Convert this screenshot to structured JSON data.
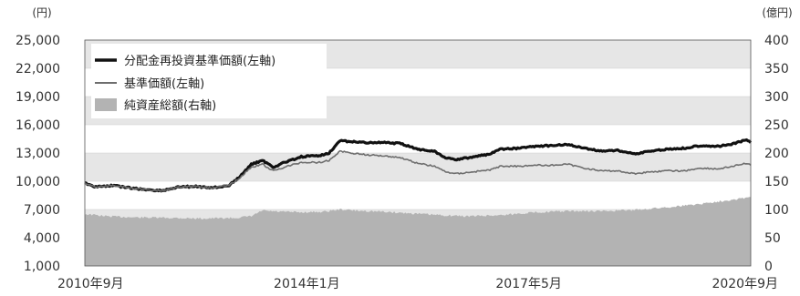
{
  "chart_data": {
    "type": "line",
    "title": "",
    "left_axis": {
      "unit": "(円)",
      "range": [
        1000,
        25000
      ],
      "ticks": [
        "25,000",
        "22,000",
        "19,000",
        "16,000",
        "13,000",
        "10,000",
        "7,000",
        "4,000",
        "1,000"
      ]
    },
    "right_axis": {
      "unit": "(億円)",
      "range": [
        0,
        400
      ],
      "ticks": [
        "400",
        "350",
        "300",
        "250",
        "200",
        "150",
        "100",
        "50",
        "0"
      ]
    },
    "x_axis": {
      "range": [
        "2010-09",
        "2020-09"
      ],
      "ticks": [
        {
          "date": "2010-09",
          "label": "2010年9月"
        },
        {
          "date": "2014-01",
          "label": "2014年1月"
        },
        {
          "date": "2017-05",
          "label": "2017年5月"
        },
        {
          "date": "2020-09",
          "label": "2020年9月"
        }
      ]
    },
    "grid": "horizontal bands",
    "legend": {
      "placement": "top-left"
    },
    "series": [
      {
        "name": "分配金再投資基準価額(左軸)",
        "axis": "left",
        "kind": "line",
        "color": "#111111",
        "points": [
          [
            "2010-09",
            9800
          ],
          [
            "2010-11",
            9400
          ],
          [
            "2011-02",
            9550
          ],
          [
            "2011-05",
            9300
          ],
          [
            "2011-08",
            9100
          ],
          [
            "2011-11",
            9000
          ],
          [
            "2012-02",
            9400
          ],
          [
            "2012-05",
            9450
          ],
          [
            "2012-08",
            9300
          ],
          [
            "2012-11",
            9550
          ],
          [
            "2013-01",
            10500
          ],
          [
            "2013-03",
            11800
          ],
          [
            "2013-05",
            12200
          ],
          [
            "2013-07",
            11500
          ],
          [
            "2013-09",
            12000
          ],
          [
            "2013-12",
            12600
          ],
          [
            "2014-03",
            12700
          ],
          [
            "2014-05",
            13000
          ],
          [
            "2014-07",
            14300
          ],
          [
            "2014-09",
            14200
          ],
          [
            "2014-12",
            14100
          ],
          [
            "2015-03",
            14100
          ],
          [
            "2015-06",
            14000
          ],
          [
            "2015-09",
            13400
          ],
          [
            "2015-12",
            13200
          ],
          [
            "2016-02",
            12500
          ],
          [
            "2016-04",
            12300
          ],
          [
            "2016-07",
            12600
          ],
          [
            "2016-10",
            12900
          ],
          [
            "2016-12",
            13400
          ],
          [
            "2017-03",
            13500
          ],
          [
            "2017-06",
            13700
          ],
          [
            "2017-09",
            13800
          ],
          [
            "2017-12",
            13900
          ],
          [
            "2018-03",
            13500
          ],
          [
            "2018-06",
            13200
          ],
          [
            "2018-09",
            13300
          ],
          [
            "2018-12",
            12900
          ],
          [
            "2019-03",
            13200
          ],
          [
            "2019-06",
            13400
          ],
          [
            "2019-09",
            13500
          ],
          [
            "2019-12",
            13800
          ],
          [
            "2020-03",
            13700
          ],
          [
            "2020-06",
            14000
          ],
          [
            "2020-08",
            14400
          ],
          [
            "2020-09",
            14100
          ]
        ]
      },
      {
        "name": "基準価額(左軸)",
        "axis": "left",
        "kind": "line",
        "color": "#6e6e6e",
        "points": [
          [
            "2010-09",
            9800
          ],
          [
            "2010-11",
            9400
          ],
          [
            "2011-02",
            9550
          ],
          [
            "2011-05",
            9300
          ],
          [
            "2011-08",
            9100
          ],
          [
            "2011-11",
            9000
          ],
          [
            "2012-02",
            9400
          ],
          [
            "2012-05",
            9450
          ],
          [
            "2012-08",
            9300
          ],
          [
            "2012-11",
            9550
          ],
          [
            "2013-01",
            10400
          ],
          [
            "2013-03",
            11500
          ],
          [
            "2013-05",
            11800
          ],
          [
            "2013-07",
            11100
          ],
          [
            "2013-09",
            11500
          ],
          [
            "2013-12",
            12000
          ],
          [
            "2014-03",
            12000
          ],
          [
            "2014-05",
            12200
          ],
          [
            "2014-07",
            13200
          ],
          [
            "2014-09",
            13000
          ],
          [
            "2014-12",
            12800
          ],
          [
            "2015-03",
            12700
          ],
          [
            "2015-06",
            12500
          ],
          [
            "2015-09",
            11900
          ],
          [
            "2015-12",
            11600
          ],
          [
            "2016-02",
            11000
          ],
          [
            "2016-04",
            10800
          ],
          [
            "2016-07",
            11000
          ],
          [
            "2016-10",
            11200
          ],
          [
            "2016-12",
            11600
          ],
          [
            "2017-03",
            11600
          ],
          [
            "2017-06",
            11700
          ],
          [
            "2017-09",
            11700
          ],
          [
            "2017-12",
            11800
          ],
          [
            "2018-03",
            11400
          ],
          [
            "2018-06",
            11100
          ],
          [
            "2018-09",
            11100
          ],
          [
            "2018-12",
            10800
          ],
          [
            "2019-03",
            11000
          ],
          [
            "2019-06",
            11100
          ],
          [
            "2019-09",
            11100
          ],
          [
            "2019-12",
            11400
          ],
          [
            "2020-03",
            11300
          ],
          [
            "2020-06",
            11600
          ],
          [
            "2020-08",
            11900
          ],
          [
            "2020-09",
            11700
          ]
        ]
      },
      {
        "name": "純資産総額(右軸)",
        "axis": "right",
        "kind": "area",
        "color": "#b3b3b3",
        "points": [
          [
            "2010-09",
            92
          ],
          [
            "2011-01",
            88
          ],
          [
            "2011-06",
            86
          ],
          [
            "2012-01",
            85
          ],
          [
            "2012-06",
            84
          ],
          [
            "2012-12",
            85
          ],
          [
            "2013-03",
            88
          ],
          [
            "2013-05",
            98
          ],
          [
            "2013-08",
            96
          ],
          [
            "2013-12",
            95
          ],
          [
            "2014-04",
            96
          ],
          [
            "2014-07",
            100
          ],
          [
            "2014-10",
            98
          ],
          [
            "2015-03",
            96
          ],
          [
            "2015-08",
            93
          ],
          [
            "2016-01",
            90
          ],
          [
            "2016-06",
            88
          ],
          [
            "2016-12",
            90
          ],
          [
            "2017-06",
            95
          ],
          [
            "2017-12",
            97
          ],
          [
            "2018-06",
            97
          ],
          [
            "2018-12",
            99
          ],
          [
            "2019-06",
            104
          ],
          [
            "2019-12",
            110
          ],
          [
            "2020-03",
            114
          ],
          [
            "2020-06",
            118
          ],
          [
            "2020-09",
            122
          ]
        ]
      }
    ]
  }
}
